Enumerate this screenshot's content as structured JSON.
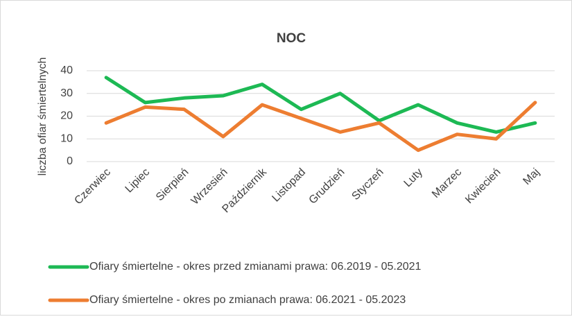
{
  "chart_data": {
    "type": "line",
    "title": "NOC",
    "ylabel": "liczba ofiar śmiertelnych",
    "categories": [
      "Czerwiec",
      "Lipiec",
      "Sierpień",
      "Wrzesień",
      "Październik",
      "Listopad",
      "Grudzień",
      "Styczeń",
      "Luty",
      "Marzec",
      "Kwiecień",
      "Maj"
    ],
    "series": [
      {
        "name": "Ofiary śmiertelne - okres przed zmianami prawa: 06.2019 - 05.2021",
        "color": "#1db954",
        "values": [
          37,
          26,
          28,
          29,
          34,
          23,
          30,
          18,
          25,
          17,
          13,
          17
        ]
      },
      {
        "name": "Ofiary śmiertelne - okres po zmianach prawa: 06.2021 - 05.2023",
        "color": "#ed7d31",
        "values": [
          17,
          24,
          23,
          11,
          25,
          19,
          13,
          17,
          5,
          12,
          10,
          26
        ]
      }
    ],
    "ylim": [
      0,
      40
    ],
    "yticks": [
      0,
      10,
      20,
      30,
      40
    ],
    "grid": true,
    "legend": "bottom"
  }
}
